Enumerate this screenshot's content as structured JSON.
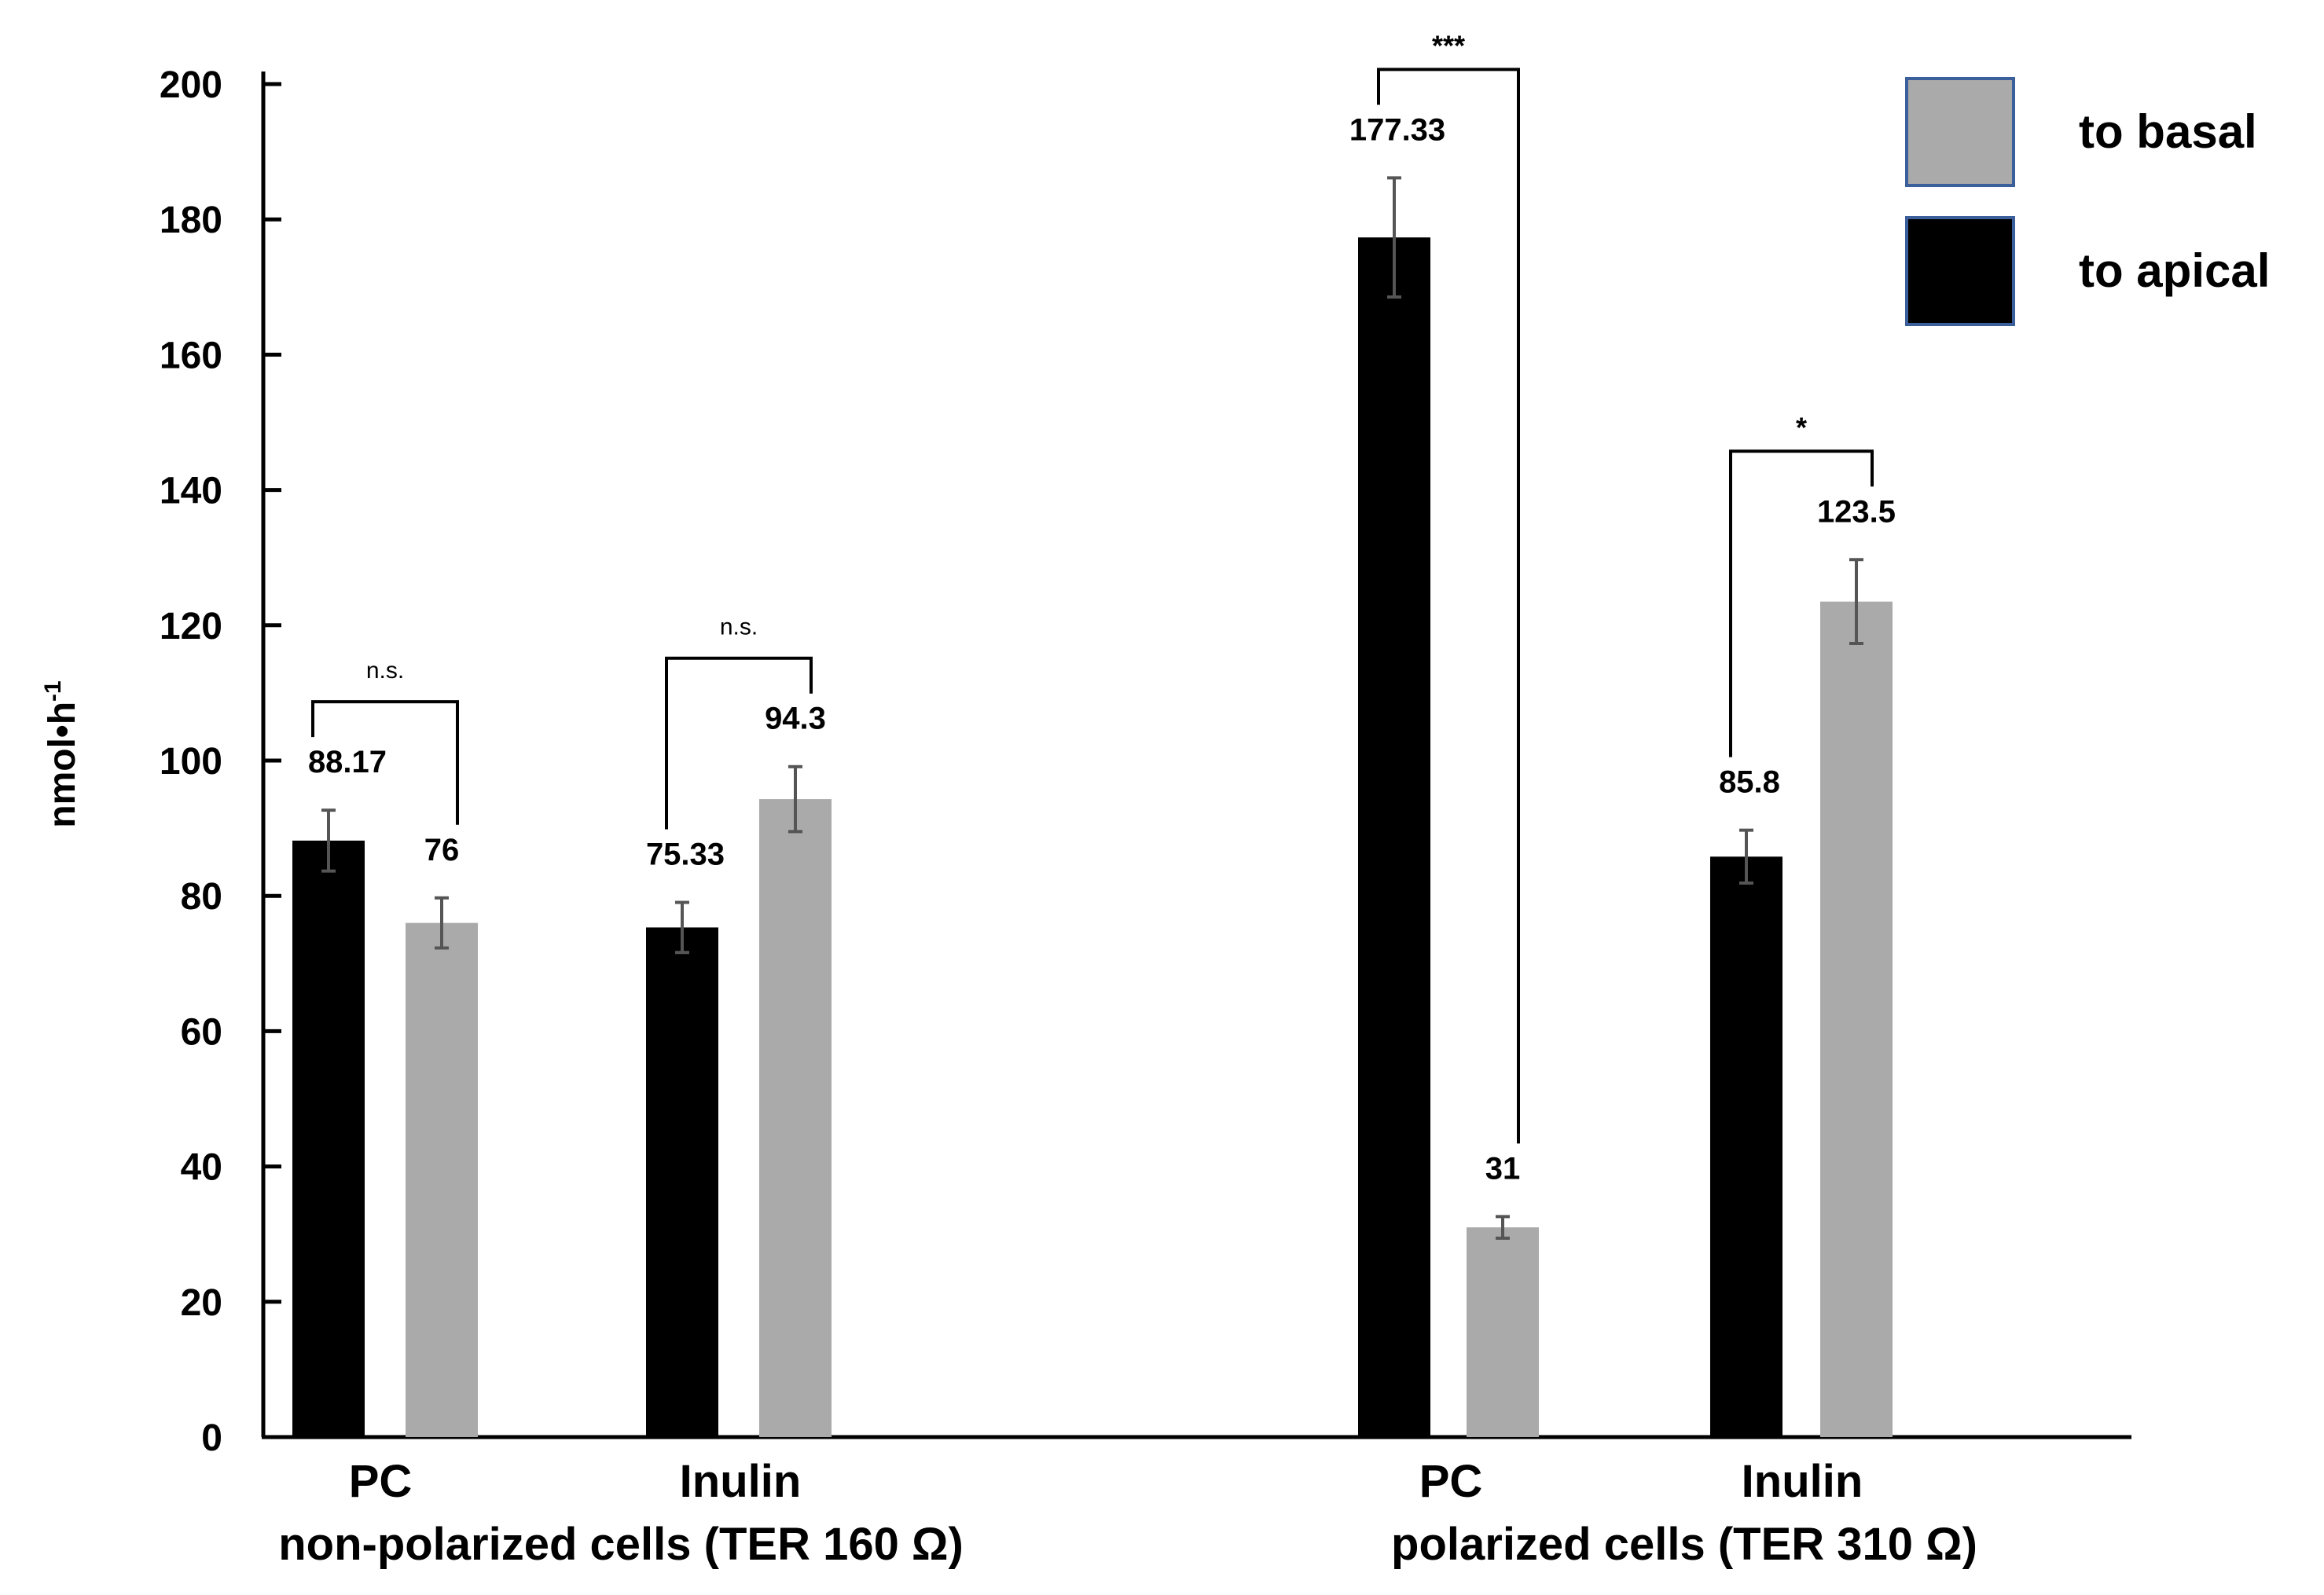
{
  "chart_data": {
    "type": "bar",
    "title": "",
    "xlabel": "",
    "ylabel": "nmol•h",
    "ylabel_superscript": "-1",
    "ylim": [
      0,
      200
    ],
    "yticks": [
      "0",
      "20",
      "40",
      "60",
      "80",
      "100",
      "120",
      "140",
      "160",
      "180",
      "200"
    ],
    "legend": {
      "placement": "top-right",
      "items": [
        {
          "name": "to basal",
          "color": "#aaaaaa"
        },
        {
          "name": "to apical",
          "color": "#000000"
        }
      ]
    },
    "groups": [
      {
        "label": "non-polarized cells (TER 160 Ω)",
        "categories": [
          {
            "label": "PC",
            "bars": [
              {
                "series": "to apical",
                "value": 88.17,
                "label": "88.17",
                "error": 4.5
              },
              {
                "series": "to basal",
                "value": 76,
                "label": "76",
                "error": 3.7
              }
            ],
            "significance": "n.s."
          },
          {
            "label": "Inulin",
            "bars": [
              {
                "series": "to apical",
                "value": 75.33,
                "label": "75.33",
                "error": 3.7
              },
              {
                "series": "to basal",
                "value": 94.3,
                "label": "94.3",
                "error": 4.8
              }
            ],
            "significance": "n.s."
          }
        ]
      },
      {
        "label": "polarized cells (TER 310 Ω)",
        "categories": [
          {
            "label": "PC",
            "bars": [
              {
                "series": "to apical",
                "value": 177.33,
                "label": "177.33",
                "error": 8.8
              },
              {
                "series": "to basal",
                "value": 31,
                "label": "31",
                "error": 1.6
              }
            ],
            "significance": "***"
          },
          {
            "label": "Inulin",
            "bars": [
              {
                "series": "to apical",
                "value": 85.8,
                "label": "85.8",
                "error": 3.9
              },
              {
                "series": "to basal",
                "value": 123.5,
                "label": "123.5",
                "error": 6.2
              }
            ],
            "significance": "*"
          }
        ]
      }
    ]
  }
}
